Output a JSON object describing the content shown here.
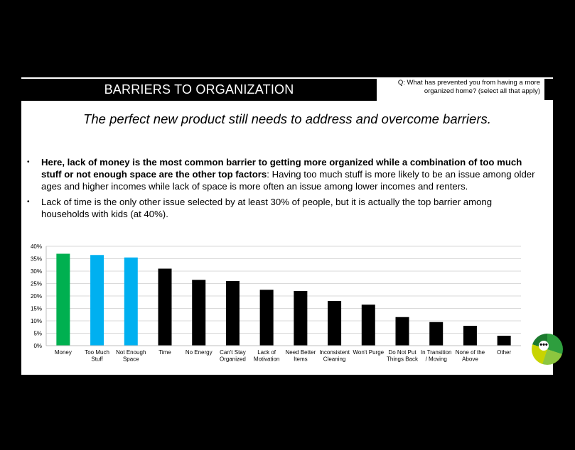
{
  "header": {
    "title": "BARRIERS TO ORGANIZATION",
    "question": "Q: What has prevented you from having a more organized home? (select all that apply)"
  },
  "subtitle": "The perfect new product still needs to address and overcome barriers.",
  "bullets": [
    {
      "bold": "Here, lack of money is the most common barrier to getting more organized while a combination of too much stuff or not enough space are the other top factors",
      "text": ":  Having too much stuff is more likely to be an issue among older ages and higher incomes while lack of space is more often an issue among lower incomes and renters."
    },
    {
      "bold": "",
      "text": "Lack of time is the only other issue selected by at least 30% of people, but it is actually the top barrier among households with kids (at 40%)."
    }
  ],
  "badge": {
    "symbol": "•••"
  },
  "colors": {
    "green": "#00b050",
    "blue": "#00b0f0",
    "black": "#000000",
    "grid": "#d9d9d9"
  },
  "chart_data": {
    "type": "bar",
    "categories": [
      "Money",
      "Too Much Stuff",
      "Not Enough Space",
      "Time",
      "No Energy",
      "Can't Stay Organized",
      "Lack of Motivation",
      "Need Better Items",
      "Inconsistent Cleaning",
      "Won't Purge",
      "Do Not Put Things Back",
      "In Transition / Moving",
      "None of the Above",
      "Other"
    ],
    "category_lines": [
      [
        "Money"
      ],
      [
        "Too Much",
        "Stuff"
      ],
      [
        "Not Enough",
        "Space"
      ],
      [
        "Time"
      ],
      [
        "No Energy"
      ],
      [
        "Can't Stay",
        "Organized"
      ],
      [
        "Lack of",
        "Motivation"
      ],
      [
        "Need Better",
        "Items"
      ],
      [
        "Inconsistent",
        "Cleaning"
      ],
      [
        "Won't Purge"
      ],
      [
        "Do Not Put",
        "Things Back"
      ],
      [
        "In Transition",
        "/ Moving"
      ],
      [
        "None of the",
        "Above"
      ],
      [
        "Other"
      ]
    ],
    "values": [
      37,
      36.5,
      35.5,
      31,
      26.5,
      26,
      22.5,
      22,
      18,
      16.5,
      11.5,
      9.5,
      8,
      4
    ],
    "bar_colors": [
      "#00b050",
      "#00b0f0",
      "#00b0f0",
      "#000000",
      "#000000",
      "#000000",
      "#000000",
      "#000000",
      "#000000",
      "#000000",
      "#000000",
      "#000000",
      "#000000",
      "#000000"
    ],
    "yticks": [
      "0%",
      "5%",
      "10%",
      "15%",
      "20%",
      "25%",
      "30%",
      "35%",
      "40%"
    ],
    "ylim": [
      0,
      40
    ],
    "grid": true,
    "title": "",
    "xlabel": "",
    "ylabel": ""
  }
}
